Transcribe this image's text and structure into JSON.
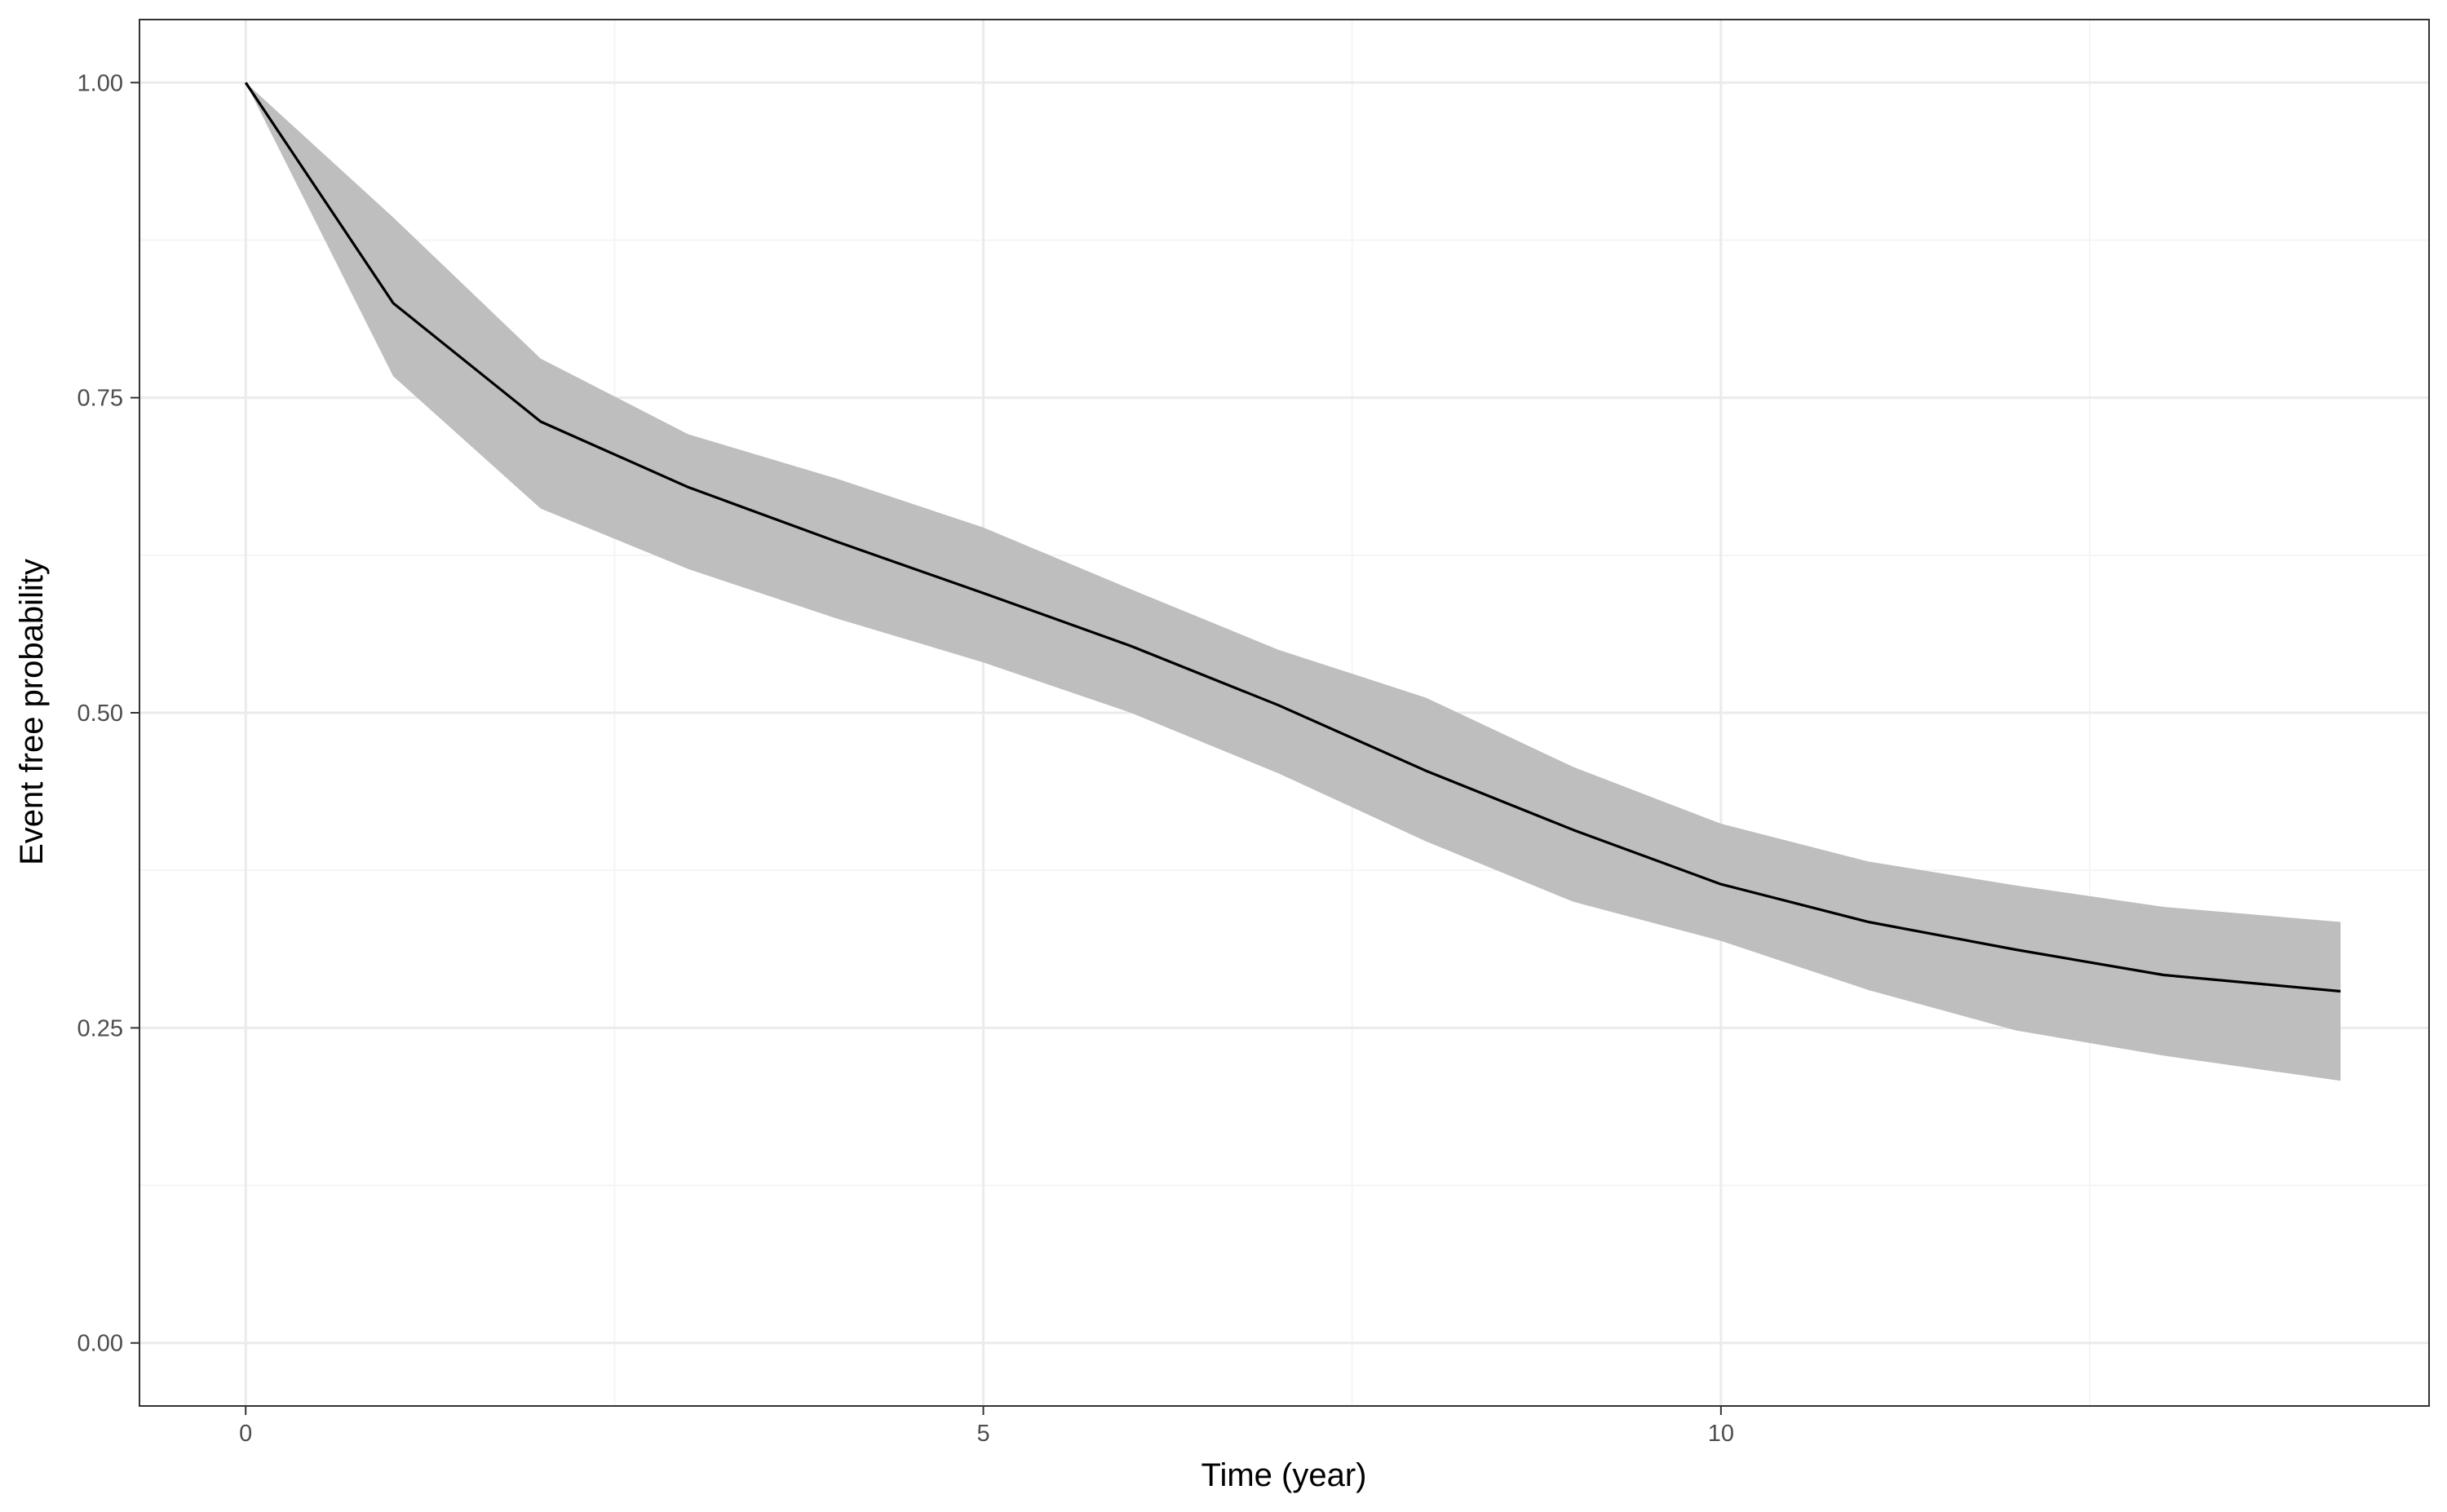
{
  "chart_data": {
    "type": "line",
    "title": "",
    "xlabel": "Time (year)",
    "ylabel": "Event free probability",
    "xlim": [
      -0.72,
      14.8
    ],
    "ylim": [
      -0.05,
      1.05
    ],
    "x_ticks": [
      {
        "value": 0,
        "label": "0"
      },
      {
        "value": 5,
        "label": "5"
      },
      {
        "value": 10,
        "label": "10"
      }
    ],
    "x_minor_ticks": [
      2.5,
      7.5,
      12.5
    ],
    "y_ticks": [
      {
        "value": 0.0,
        "label": "0.00"
      },
      {
        "value": 0.25,
        "label": "0.25"
      },
      {
        "value": 0.5,
        "label": "0.50"
      },
      {
        "value": 0.75,
        "label": "0.75"
      },
      {
        "value": 1.0,
        "label": "1.00"
      }
    ],
    "y_minor_ticks": [
      0.125,
      0.375,
      0.625,
      0.875
    ],
    "grid": true,
    "legend": "none",
    "series": [
      {
        "x": [
          0,
          1,
          2,
          3,
          4,
          5,
          6,
          7,
          8,
          9,
          10,
          11,
          12,
          13,
          14.2
        ],
        "y": [
          1.0,
          0.825,
          0.731,
          0.679,
          0.636,
          0.595,
          0.553,
          0.506,
          0.454,
          0.407,
          0.364,
          0.334,
          0.312,
          0.292,
          0.279
        ],
        "ci_lower": [
          1.0,
          0.767,
          0.662,
          0.614,
          0.575,
          0.54,
          0.5,
          0.452,
          0.398,
          0.35,
          0.319,
          0.28,
          0.248,
          0.228,
          0.208
        ],
        "ci_upper": [
          1.0,
          0.893,
          0.781,
          0.721,
          0.686,
          0.647,
          0.598,
          0.55,
          0.512,
          0.457,
          0.412,
          0.382,
          0.363,
          0.346,
          0.334
        ]
      }
    ],
    "colors": {
      "line": "#000000",
      "ribbon": "#bebebe",
      "grid_major": "#ebebeb",
      "grid_minor": "#f5f5f5",
      "panel_border": "#333333",
      "tick_label": "#4d4d4d"
    }
  }
}
